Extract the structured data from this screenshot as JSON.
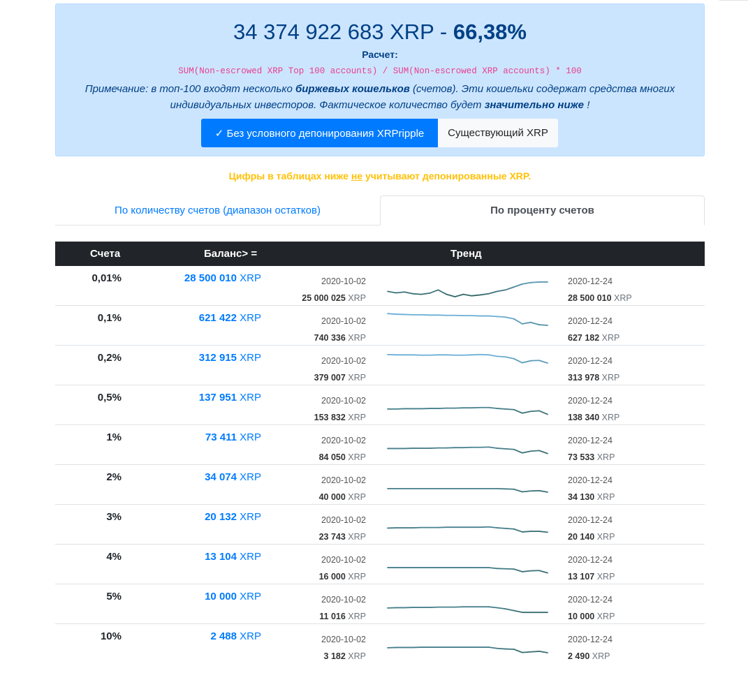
{
  "summary": {
    "total": "34 374 922 683 XRP",
    "separator": " - ",
    "percent": "66,38%",
    "calc_label": "Расчет:",
    "formula": "SUM(Non-escrowed XRP Top 100 accounts) / SUM(Non-escrowed XRP accounts) * 100",
    "note_1": "Примечание: в топ-100 входят несколько ",
    "note_bold_1": "биржевых кошельков",
    "note_2": " (счетов). Эти кошельки содержат средства многих индивидуальных инвесторов. Фактическое количество будет ",
    "note_bold_2": "значительно ниже",
    "note_3": " !"
  },
  "toggle": {
    "active_label": "✓ Без условного депонирования XRPripple",
    "inactive_label": "Существующий XRP"
  },
  "warning": {
    "part1": "Цифры в таблицах ниже ",
    "underlined": "не",
    "part2": " учитывают депонированные XRP."
  },
  "tabs": {
    "tab1": "По количеству счетов (диапазон остатков)",
    "tab2": "По проценту счетов"
  },
  "table": {
    "headers": {
      "accounts": "Счета",
      "balance": "Баланс> =",
      "trend": "Тренд"
    },
    "unit": "XRP",
    "rows": [
      {
        "pct": "0,01%",
        "balance": "28 500 010",
        "start_date": "2020-10-02",
        "start_value": "25 000 025",
        "end_date": "2020-12-24",
        "end_value": "28 500 010",
        "trend": [
          0.3,
          0.25,
          0.28,
          0.22,
          0.2,
          0.24,
          0.35,
          0.2,
          0.12,
          0.2,
          0.15,
          0.18,
          0.22,
          0.3,
          0.35,
          0.45,
          0.55,
          0.6,
          0.62,
          0.62
        ]
      },
      {
        "pct": "0,1%",
        "balance": "621 422",
        "start_date": "2020-10-02",
        "start_value": "740 336",
        "end_date": "2020-12-24",
        "end_value": "627 182",
        "trend": [
          0.9,
          0.88,
          0.87,
          0.86,
          0.86,
          0.85,
          0.85,
          0.84,
          0.84,
          0.83,
          0.83,
          0.82,
          0.82,
          0.8,
          0.78,
          0.72,
          0.55,
          0.6,
          0.52,
          0.5
        ]
      },
      {
        "pct": "0,2%",
        "balance": "312 915",
        "start_date": "2020-10-02",
        "start_value": "379 007",
        "end_date": "2020-12-24",
        "end_value": "313 978",
        "trend": [
          0.86,
          0.85,
          0.85,
          0.85,
          0.84,
          0.84,
          0.85,
          0.85,
          0.84,
          0.84,
          0.85,
          0.86,
          0.85,
          0.8,
          0.78,
          0.72,
          0.58,
          0.65,
          0.66,
          0.57
        ]
      },
      {
        "pct": "0,5%",
        "balance": "137 951",
        "start_date": "2020-10-02",
        "start_value": "153 832",
        "end_date": "2020-12-24",
        "end_value": "138 340",
        "trend": [
          0.36,
          0.36,
          0.37,
          0.37,
          0.37,
          0.38,
          0.38,
          0.39,
          0.39,
          0.4,
          0.4,
          0.41,
          0.41,
          0.38,
          0.36,
          0.34,
          0.22,
          0.28,
          0.3,
          0.18
        ]
      },
      {
        "pct": "1%",
        "balance": "73 411",
        "start_date": "2020-10-02",
        "start_value": "84 050",
        "end_date": "2020-12-24",
        "end_value": "73 533",
        "trend": [
          0.37,
          0.37,
          0.37,
          0.38,
          0.38,
          0.38,
          0.39,
          0.39,
          0.4,
          0.4,
          0.41,
          0.41,
          0.42,
          0.38,
          0.36,
          0.34,
          0.22,
          0.28,
          0.3,
          0.2
        ]
      },
      {
        "pct": "2%",
        "balance": "34 074",
        "start_date": "2020-10-02",
        "start_value": "40 000",
        "end_date": "2020-12-24",
        "end_value": "34 130",
        "trend": [
          0.36,
          0.36,
          0.36,
          0.36,
          0.36,
          0.36,
          0.36,
          0.36,
          0.36,
          0.36,
          0.36,
          0.36,
          0.36,
          0.36,
          0.35,
          0.34,
          0.25,
          0.28,
          0.29,
          0.24
        ]
      },
      {
        "pct": "3%",
        "balance": "20 132",
        "start_date": "2020-10-02",
        "start_value": "23 743",
        "end_date": "2020-12-24",
        "end_value": "20 140",
        "trend": [
          0.37,
          0.38,
          0.38,
          0.38,
          0.39,
          0.39,
          0.39,
          0.4,
          0.4,
          0.4,
          0.4,
          0.4,
          0.41,
          0.38,
          0.36,
          0.34,
          0.24,
          0.26,
          0.26,
          0.23
        ]
      },
      {
        "pct": "4%",
        "balance": "13 104",
        "start_date": "2020-10-02",
        "start_value": "16 000",
        "end_date": "2020-12-24",
        "end_value": "13 107",
        "trend": [
          0.38,
          0.38,
          0.38,
          0.38,
          0.38,
          0.38,
          0.38,
          0.38,
          0.38,
          0.38,
          0.38,
          0.38,
          0.38,
          0.35,
          0.34,
          0.33,
          0.24,
          0.27,
          0.28,
          0.2
        ]
      },
      {
        "pct": "5%",
        "balance": "10 000",
        "start_date": "2020-10-02",
        "start_value": "11 016",
        "end_date": "2020-12-24",
        "end_value": "10 000",
        "trend": [
          0.36,
          0.37,
          0.37,
          0.38,
          0.38,
          0.38,
          0.39,
          0.39,
          0.39,
          0.4,
          0.4,
          0.4,
          0.4,
          0.37,
          0.33,
          0.27,
          0.21,
          0.21,
          0.21,
          0.21
        ]
      },
      {
        "pct": "10%",
        "balance": "2 488",
        "start_date": "2020-10-02",
        "start_value": "3 182",
        "end_date": "2020-12-24",
        "end_value": "2 490",
        "trend": [
          0.36,
          0.37,
          0.37,
          0.37,
          0.38,
          0.38,
          0.38,
          0.38,
          0.38,
          0.38,
          0.38,
          0.38,
          0.38,
          0.34,
          0.32,
          0.31,
          0.2,
          0.22,
          0.24,
          0.19
        ]
      }
    ]
  },
  "colors": {
    "primary": "#007bff",
    "warning": "#ffc107",
    "alert_bg": "#cce5ff",
    "header_bg": "#212529",
    "trend_light": "#6baed6",
    "trend_dark": "#2a5a52"
  }
}
